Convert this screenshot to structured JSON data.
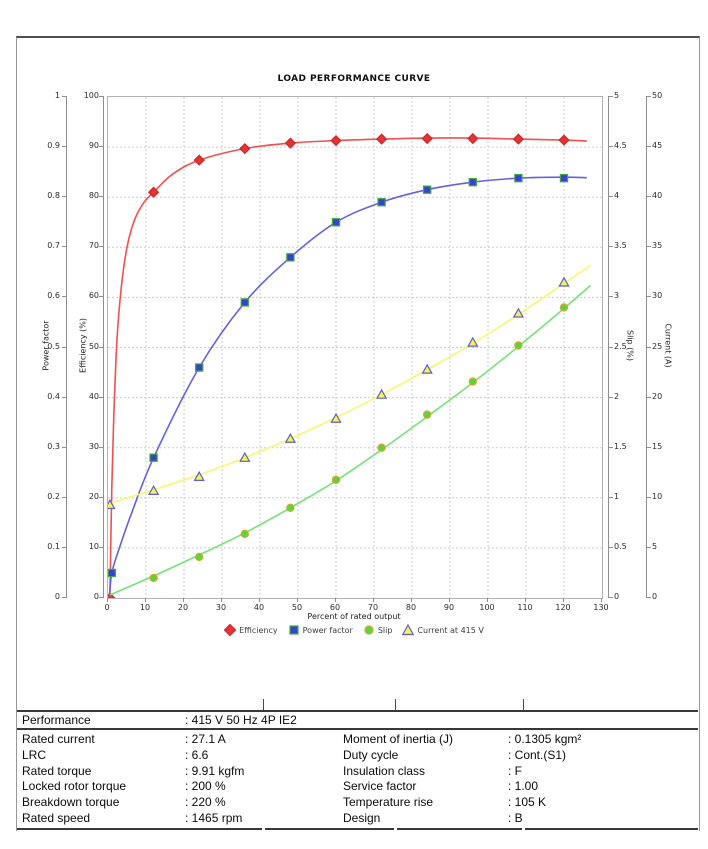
{
  "chart": {
    "title": "LOAD PERFORMANCE CURVE",
    "x_axis": {
      "label": "Percent of rated output",
      "min": 0,
      "max": 130,
      "step": 10,
      "ticks": [
        "0",
        "10",
        "20",
        "30",
        "40",
        "50",
        "60",
        "70",
        "80",
        "90",
        "100",
        "110",
        "120",
        "130"
      ]
    },
    "axes": {
      "power_factor": {
        "label": "Power factor",
        "min": 0,
        "max": 1,
        "step": 0.1,
        "ticks": [
          "0",
          "0.1",
          "0.2",
          "0.3",
          "0.4",
          "0.5",
          "0.6",
          "0.7",
          "0.8",
          "0.9",
          "1"
        ]
      },
      "efficiency": {
        "label": "Efficiency (%)",
        "min": 0,
        "max": 100,
        "step": 10,
        "ticks": [
          "0",
          "10",
          "20",
          "30",
          "40",
          "50",
          "60",
          "70",
          "80",
          "90",
          "100"
        ]
      },
      "slip": {
        "label": "Slip (%)",
        "min": 0,
        "max": 5,
        "step": 0.5,
        "ticks": [
          "0",
          "0.5",
          "1",
          "1.5",
          "2",
          "2.5",
          "3",
          "3.5",
          "4",
          "4.5",
          "5"
        ]
      },
      "current": {
        "label": "Current (A)",
        "min": 0,
        "max": 50,
        "step": 5,
        "ticks": [
          "0",
          "5",
          "10",
          "15",
          "20",
          "25",
          "30",
          "35",
          "40",
          "45",
          "50"
        ]
      }
    },
    "grid": {
      "on": true,
      "color": "#cbcbcb"
    }
  },
  "chart_data": {
    "type": "line",
    "title": "LOAD PERFORMANCE CURVE",
    "xlabel": "Percent of rated output",
    "xlim": [
      0,
      130
    ],
    "legend_position": "bottom",
    "series": [
      {
        "name": "Efficiency",
        "axis": "Efficiency (%)",
        "ylim": [
          0,
          100
        ],
        "marker": "diamond",
        "line_color": "#f0504f",
        "marker_fill": "#e63232",
        "marker_stroke": "#c92a2a",
        "points": [
          [
            0.5,
            0
          ],
          [
            12,
            81
          ],
          [
            24,
            87.4
          ],
          [
            36,
            89.7
          ],
          [
            48,
            90.8
          ],
          [
            60,
            91.3
          ],
          [
            72,
            91.6
          ],
          [
            84,
            91.7
          ],
          [
            96,
            91.7
          ],
          [
            108,
            91.6
          ],
          [
            120,
            91.4
          ]
        ],
        "curve": [
          [
            0.5,
            0
          ],
          [
            1,
            22
          ],
          [
            1.6,
            38
          ],
          [
            2.4,
            52
          ],
          [
            3.5,
            62
          ],
          [
            5,
            70
          ],
          [
            7,
            75.5
          ],
          [
            9.5,
            79
          ],
          [
            12,
            81
          ],
          [
            17,
            84.6
          ],
          [
            24,
            87.4
          ],
          [
            36,
            89.7
          ],
          [
            48,
            90.8
          ],
          [
            60,
            91.3
          ],
          [
            72,
            91.6
          ],
          [
            84,
            91.8
          ],
          [
            96,
            91.8
          ],
          [
            108,
            91.6
          ],
          [
            120,
            91.4
          ],
          [
            126,
            91.2
          ]
        ]
      },
      {
        "name": "Power factor",
        "axis": "Power factor",
        "ylim": [
          0,
          1
        ],
        "marker": "square",
        "line_color": "#6262e0",
        "marker_fill": "#3543cf",
        "marker_stroke": "#43a843",
        "points": [
          [
            1,
            0.05
          ],
          [
            12,
            0.28
          ],
          [
            24,
            0.46
          ],
          [
            36,
            0.59
          ],
          [
            48,
            0.68
          ],
          [
            60,
            0.75
          ],
          [
            72,
            0.79
          ],
          [
            84,
            0.815
          ],
          [
            96,
            0.83
          ],
          [
            108,
            0.838
          ],
          [
            120,
            0.838
          ]
        ],
        "curve": [
          [
            0.4,
            0.005
          ],
          [
            1,
            0.05
          ],
          [
            3,
            0.1
          ],
          [
            6,
            0.165
          ],
          [
            12,
            0.28
          ],
          [
            24,
            0.46
          ],
          [
            36,
            0.59
          ],
          [
            48,
            0.68
          ],
          [
            60,
            0.75
          ],
          [
            72,
            0.79
          ],
          [
            84,
            0.815
          ],
          [
            96,
            0.83
          ],
          [
            108,
            0.838
          ],
          [
            120,
            0.84
          ],
          [
            126,
            0.839
          ]
        ]
      },
      {
        "name": "Slip",
        "axis": "Slip (%)",
        "ylim": [
          0,
          5
        ],
        "marker": "circle",
        "line_color": "#76e276",
        "marker_fill": "#53d93f",
        "marker_stroke": "#dba32a",
        "points": [
          [
            12,
            0.2
          ],
          [
            24,
            0.41
          ],
          [
            36,
            0.64
          ],
          [
            48,
            0.9
          ],
          [
            60,
            1.18
          ],
          [
            72,
            1.5
          ],
          [
            84,
            1.83
          ],
          [
            96,
            2.16
          ],
          [
            108,
            2.52
          ],
          [
            120,
            2.9
          ]
        ],
        "curve": [
          [
            0.5,
            0.03
          ],
          [
            12,
            0.22
          ],
          [
            24,
            0.43
          ],
          [
            36,
            0.65
          ],
          [
            48,
            0.9
          ],
          [
            60,
            1.17
          ],
          [
            72,
            1.48
          ],
          [
            84,
            1.81
          ],
          [
            96,
            2.15
          ],
          [
            108,
            2.51
          ],
          [
            120,
            2.89
          ],
          [
            127,
            3.12
          ]
        ]
      },
      {
        "name": "Current at 415 V",
        "axis": "Current (A)",
        "ylim": [
          0,
          50
        ],
        "marker": "triangle",
        "line_color": "#f8f86e",
        "marker_fill": "#f6f64a",
        "marker_stroke": "#5c5cd6",
        "points": [
          [
            0.5,
            9.3
          ],
          [
            12,
            10.7
          ],
          [
            24,
            12.1
          ],
          [
            36,
            14.0
          ],
          [
            48,
            15.9
          ],
          [
            60,
            17.9
          ],
          [
            72,
            20.3
          ],
          [
            84,
            22.8
          ],
          [
            96,
            25.5
          ],
          [
            108,
            28.4
          ],
          [
            120,
            31.5
          ]
        ],
        "curve": [
          [
            0,
            9.4
          ],
          [
            12,
            10.8
          ],
          [
            24,
            12.3
          ],
          [
            36,
            14.0
          ],
          [
            48,
            15.9
          ],
          [
            60,
            18.0
          ],
          [
            72,
            20.3
          ],
          [
            84,
            22.8
          ],
          [
            96,
            25.4
          ],
          [
            108,
            28.3
          ],
          [
            120,
            31.4
          ],
          [
            127,
            33.2
          ]
        ]
      }
    ]
  },
  "table": {
    "performance_label": "Performance",
    "performance_value": ": 415 V 50 Hz 4P IE2",
    "rows": [
      {
        "label_left": "Rated current",
        "value_left": ": 27.1 A",
        "label_right": "Moment of inertia (J)",
        "value_right": ": 0.1305 kgm²"
      },
      {
        "label_left": "LRC",
        "value_left": ": 6.6",
        "label_right": "Duty cycle",
        "value_right": ": Cont.(S1)"
      },
      {
        "label_left": "Rated torque",
        "value_left": ": 9.91 kgfm",
        "label_right": "Insulation class",
        "value_right": ": F"
      },
      {
        "label_left": "Locked rotor torque",
        "value_left": ": 200 %",
        "label_right": "Service factor",
        "value_right": ": 1.00"
      },
      {
        "label_left": "Breakdown torque",
        "value_left": ": 220 %",
        "label_right": "Temperature rise",
        "value_right": ": 105 K"
      },
      {
        "label_left": "Rated speed",
        "value_left": ": 1465 rpm",
        "label_right": "Design",
        "value_right": ": B"
      }
    ]
  }
}
